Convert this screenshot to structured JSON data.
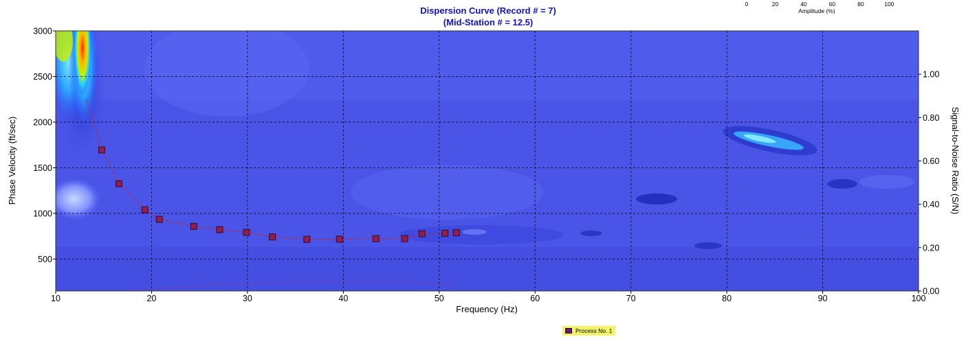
{
  "chart_data": {
    "type": "scatter",
    "title": "Dispersion Curve (Record # = 7)",
    "subtitle": "(Mid-Station # = 12.5)",
    "xlabel": "Frequency (Hz)",
    "ylabel": "Phase Velocity (ft/sec)",
    "y2label": "Signal-to-Noise Ratio (S/N)",
    "xlim": [
      10,
      100
    ],
    "ylim": [
      150,
      3000
    ],
    "y2lim": [
      0.0,
      1.2
    ],
    "x_ticks": [
      "10",
      "20",
      "30",
      "40",
      "50",
      "60",
      "70",
      "80",
      "90",
      "100"
    ],
    "y_ticks": [
      "500",
      "1000",
      "1500",
      "2000",
      "2500",
      "3000"
    ],
    "y2_ticks": [
      "0.00",
      "0.20",
      "0.40",
      "0.60",
      "0.80",
      "1.00"
    ],
    "grid": true,
    "background_color": "#4a55e8",
    "marker_color": "#8b1e52",
    "line_color": "#d02020",
    "series": [
      {
        "name": "Process No. 1",
        "points": [
          {
            "x": 14.8,
            "y": 1695
          },
          {
            "x": 16.6,
            "y": 1325
          },
          {
            "x": 19.3,
            "y": 1040
          },
          {
            "x": 20.8,
            "y": 935
          },
          {
            "x": 24.4,
            "y": 858
          },
          {
            "x": 27.1,
            "y": 822
          },
          {
            "x": 29.9,
            "y": 792
          },
          {
            "x": 32.6,
            "y": 742
          },
          {
            "x": 36.2,
            "y": 716
          },
          {
            "x": 39.6,
            "y": 718
          },
          {
            "x": 43.4,
            "y": 723
          },
          {
            "x": 46.4,
            "y": 724
          },
          {
            "x": 48.2,
            "y": 777
          },
          {
            "x": 50.6,
            "y": 782
          },
          {
            "x": 51.8,
            "y": 788
          }
        ]
      }
    ],
    "colorscale": {
      "label": "Amplitude (%)",
      "ticks": [
        "0",
        "20",
        "40",
        "60",
        "80",
        "100"
      ]
    }
  },
  "legend": {
    "items": [
      {
        "label": "Process No. 1"
      }
    ]
  }
}
